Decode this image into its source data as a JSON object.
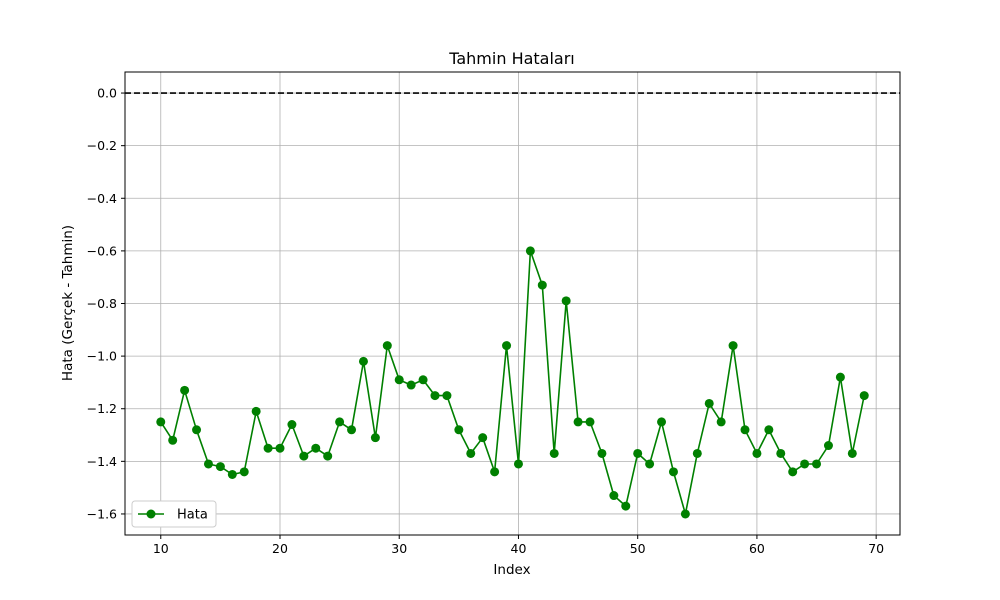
{
  "chart_data": {
    "type": "line",
    "title": "Tahmin Hataları",
    "xlabel": "Index",
    "ylabel": "Hata (Gerçek - Tahmin)",
    "xlim": [
      7,
      72
    ],
    "ylim": [
      -1.68,
      0.08
    ],
    "xticks": [
      10,
      20,
      30,
      40,
      50,
      60,
      70
    ],
    "yticks": [
      0.0,
      -0.2,
      -0.4,
      -0.6,
      -0.8,
      -1.0,
      -1.2,
      -1.4,
      -1.6
    ],
    "ytick_labels": [
      "0.0",
      "−0.2",
      "−0.4",
      "−0.6",
      "−0.8",
      "−1.0",
      "−1.2",
      "−1.4",
      "−1.6"
    ],
    "grid": true,
    "reference_line": {
      "y": 0.0,
      "style": "dashed",
      "color": "#000000"
    },
    "legend": {
      "position": "lower-left"
    },
    "series": [
      {
        "name": "Hata",
        "color": "#008000",
        "marker": "circle",
        "x": [
          10,
          11,
          12,
          13,
          14,
          15,
          16,
          17,
          18,
          19,
          20,
          21,
          22,
          23,
          24,
          25,
          26,
          27,
          28,
          29,
          30,
          31,
          32,
          33,
          34,
          35,
          36,
          37,
          38,
          39,
          40,
          41,
          42,
          43,
          44,
          45,
          46,
          47,
          48,
          49,
          50,
          51,
          52,
          53,
          54,
          55,
          56,
          57,
          58,
          59,
          60,
          61,
          62,
          63,
          64,
          65,
          66,
          67,
          68,
          69
        ],
        "values": [
          -1.25,
          -1.32,
          -1.13,
          -1.28,
          -1.41,
          -1.42,
          -1.45,
          -1.44,
          -1.21,
          -1.35,
          -1.35,
          -1.26,
          -1.38,
          -1.35,
          -1.38,
          -1.25,
          -1.28,
          -1.02,
          -1.31,
          -0.96,
          -1.09,
          -1.11,
          -1.09,
          -1.15,
          -1.15,
          -1.28,
          -1.37,
          -1.31,
          -1.44,
          -0.96,
          -1.41,
          -0.6,
          -0.73,
          -1.37,
          -0.79,
          -1.25,
          -1.25,
          -1.37,
          -1.53,
          -1.57,
          -1.37,
          -1.41,
          -1.25,
          -1.44,
          -1.6,
          -1.37,
          -1.18,
          -1.25,
          -0.96,
          -1.28,
          -1.37,
          -1.28,
          -1.37,
          -1.44,
          -1.41,
          -1.41,
          -1.34,
          -1.08,
          -1.37,
          -1.15
        ]
      }
    ]
  }
}
